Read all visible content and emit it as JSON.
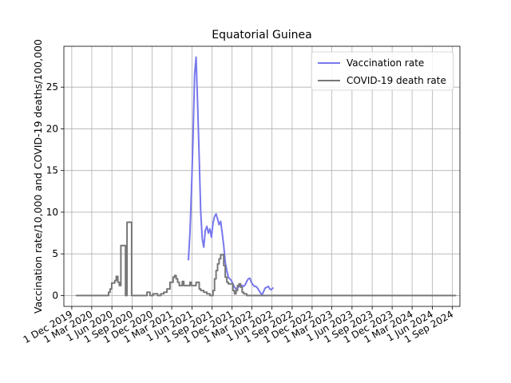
{
  "chart_data": {
    "type": "line",
    "title": "Equatorial Guinea",
    "xlabel": "",
    "ylabel": "Vaccination rate/10,000 and COVID-19 deaths/100,000",
    "x_axis_type": "date",
    "xlim": [
      "2019-10-26",
      "2024-10-05"
    ],
    "ylim": [
      -1.3,
      29.9
    ],
    "grid": true,
    "legend_position": "upper right",
    "x_ticks": [
      {
        "date": "2019-12-01",
        "label": "1 Dec 2019"
      },
      {
        "date": "2020-03-01",
        "label": "1 Mar 2020"
      },
      {
        "date": "2020-06-01",
        "label": "1 Jun 2020"
      },
      {
        "date": "2020-09-01",
        "label": "1 Sep 2020"
      },
      {
        "date": "2020-12-01",
        "label": "1 Dec 2020"
      },
      {
        "date": "2021-03-01",
        "label": "1 Mar 2021"
      },
      {
        "date": "2021-06-01",
        "label": "1 Jun 2021"
      },
      {
        "date": "2021-09-01",
        "label": "1 Sep 2021"
      },
      {
        "date": "2021-12-01",
        "label": "1 Dec 2021"
      },
      {
        "date": "2022-03-01",
        "label": "1 Mar 2022"
      },
      {
        "date": "2022-06-01",
        "label": "1 Jun 2022"
      },
      {
        "date": "2022-09-01",
        "label": "1 Sep 2022"
      },
      {
        "date": "2022-12-01",
        "label": "1 Dec 2022"
      },
      {
        "date": "2023-03-01",
        "label": "1 Mar 2023"
      },
      {
        "date": "2023-06-01",
        "label": "1 Jun 2023"
      },
      {
        "date": "2023-09-01",
        "label": "1 Sep 2023"
      },
      {
        "date": "2023-12-01",
        "label": "1 Dec 2023"
      },
      {
        "date": "2024-03-01",
        "label": "1 Mar 2024"
      },
      {
        "date": "2024-06-01",
        "label": "1 Jun 2024"
      },
      {
        "date": "2024-09-01",
        "label": "1 Sep 2024"
      }
    ],
    "y_ticks": [
      {
        "value": 0,
        "label": "0"
      },
      {
        "value": 5,
        "label": "5"
      },
      {
        "value": 10,
        "label": "10"
      },
      {
        "value": 15,
        "label": "15"
      },
      {
        "value": 20,
        "label": "20"
      },
      {
        "value": 25,
        "label": "25"
      }
    ],
    "series": [
      {
        "name": "Vaccination rate",
        "color": "#7777ee",
        "style": "line",
        "points": [
          [
            "2021-05-16",
            4.3
          ],
          [
            "2021-05-23",
            7.5
          ],
          [
            "2021-05-30",
            12.5
          ],
          [
            "2021-06-06",
            19.0
          ],
          [
            "2021-06-13",
            26.5
          ],
          [
            "2021-06-20",
            28.6
          ],
          [
            "2021-06-27",
            23.0
          ],
          [
            "2021-07-04",
            16.5
          ],
          [
            "2021-07-11",
            10.0
          ],
          [
            "2021-07-18",
            6.8
          ],
          [
            "2021-07-25",
            5.8
          ],
          [
            "2021-08-01",
            7.8
          ],
          [
            "2021-08-08",
            8.3
          ],
          [
            "2021-08-15",
            7.5
          ],
          [
            "2021-08-22",
            8.0
          ],
          [
            "2021-08-29",
            7.0
          ],
          [
            "2021-09-05",
            8.7
          ],
          [
            "2021-09-12",
            9.5
          ],
          [
            "2021-09-19",
            9.8
          ],
          [
            "2021-09-26",
            9.2
          ],
          [
            "2021-10-03",
            8.5
          ],
          [
            "2021-10-10",
            8.9
          ],
          [
            "2021-10-17",
            7.5
          ],
          [
            "2021-10-24",
            6.0
          ],
          [
            "2021-10-31",
            4.0
          ],
          [
            "2021-11-07",
            3.0
          ],
          [
            "2021-11-14",
            2.2
          ],
          [
            "2021-11-21",
            2.0
          ],
          [
            "2021-11-28",
            1.8
          ],
          [
            "2021-12-05",
            1.4
          ],
          [
            "2021-12-12",
            1.0
          ],
          [
            "2021-12-19",
            0.8
          ],
          [
            "2021-12-26",
            0.9
          ],
          [
            "2022-01-02",
            1.1
          ],
          [
            "2022-01-09",
            1.2
          ],
          [
            "2022-01-16",
            1.2
          ],
          [
            "2022-01-23",
            1.1
          ],
          [
            "2022-01-30",
            1.3
          ],
          [
            "2022-02-06",
            1.7
          ],
          [
            "2022-02-13",
            2.0
          ],
          [
            "2022-02-20",
            2.1
          ],
          [
            "2022-02-27",
            1.6
          ],
          [
            "2022-03-06",
            1.3
          ],
          [
            "2022-03-13",
            1.1
          ],
          [
            "2022-03-20",
            1.1
          ],
          [
            "2022-03-27",
            0.9
          ],
          [
            "2022-04-03",
            0.6
          ],
          [
            "2022-04-10",
            0.3
          ],
          [
            "2022-04-17",
            0.1
          ],
          [
            "2022-04-24",
            0.5
          ],
          [
            "2022-05-01",
            0.9
          ],
          [
            "2022-05-08",
            1.0
          ],
          [
            "2022-05-15",
            1.1
          ],
          [
            "2022-05-22",
            0.8
          ],
          [
            "2022-05-29",
            0.7
          ],
          [
            "2022-06-05",
            0.9
          ]
        ]
      },
      {
        "name": "COVID-19 death rate",
        "color": "#777777",
        "style": "step",
        "points": [
          [
            "2019-12-22",
            0.0
          ],
          [
            "2020-05-10",
            0.0
          ],
          [
            "2020-05-17",
            0.4
          ],
          [
            "2020-05-24",
            0.8
          ],
          [
            "2020-05-31",
            1.5
          ],
          [
            "2020-06-14",
            1.8
          ],
          [
            "2020-06-21",
            2.3
          ],
          [
            "2020-06-28",
            1.6
          ],
          [
            "2020-07-05",
            1.2
          ],
          [
            "2020-07-12",
            6.0
          ],
          [
            "2020-08-02",
            0.0
          ],
          [
            "2020-08-09",
            8.8
          ],
          [
            "2020-08-30",
            0.0
          ],
          [
            "2020-11-08",
            0.4
          ],
          [
            "2020-11-22",
            0.0
          ],
          [
            "2020-12-06",
            0.2
          ],
          [
            "2020-12-27",
            0.0
          ],
          [
            "2021-01-10",
            0.2
          ],
          [
            "2021-01-24",
            0.4
          ],
          [
            "2021-02-07",
            0.8
          ],
          [
            "2021-02-21",
            1.6
          ],
          [
            "2021-03-07",
            2.2
          ],
          [
            "2021-03-14",
            2.4
          ],
          [
            "2021-03-21",
            2.0
          ],
          [
            "2021-03-28",
            1.6
          ],
          [
            "2021-04-04",
            1.2
          ],
          [
            "2021-04-18",
            1.7
          ],
          [
            "2021-04-25",
            1.2
          ],
          [
            "2021-05-23",
            1.6
          ],
          [
            "2021-05-30",
            1.2
          ],
          [
            "2021-06-20",
            1.6
          ],
          [
            "2021-07-04",
            0.8
          ],
          [
            "2021-07-11",
            0.6
          ],
          [
            "2021-07-25",
            0.4
          ],
          [
            "2021-08-08",
            0.2
          ],
          [
            "2021-08-22",
            0.0
          ],
          [
            "2021-09-05",
            0.6
          ],
          [
            "2021-09-12",
            2.0
          ],
          [
            "2021-09-19",
            3.0
          ],
          [
            "2021-09-26",
            3.8
          ],
          [
            "2021-10-03",
            4.4
          ],
          [
            "2021-10-10",
            4.9
          ],
          [
            "2021-10-24",
            3.6
          ],
          [
            "2021-10-31",
            2.2
          ],
          [
            "2021-11-07",
            1.6
          ],
          [
            "2021-11-14",
            1.4
          ],
          [
            "2021-12-05",
            0.6
          ],
          [
            "2021-12-12",
            0.2
          ],
          [
            "2021-12-19",
            0.6
          ],
          [
            "2021-12-26",
            1.2
          ],
          [
            "2022-01-02",
            1.4
          ],
          [
            "2022-01-09",
            1.0
          ],
          [
            "2022-01-16",
            0.4
          ],
          [
            "2022-01-23",
            0.2
          ],
          [
            "2022-02-06",
            0.0
          ],
          [
            "2024-09-15",
            0.0
          ]
        ]
      }
    ]
  }
}
